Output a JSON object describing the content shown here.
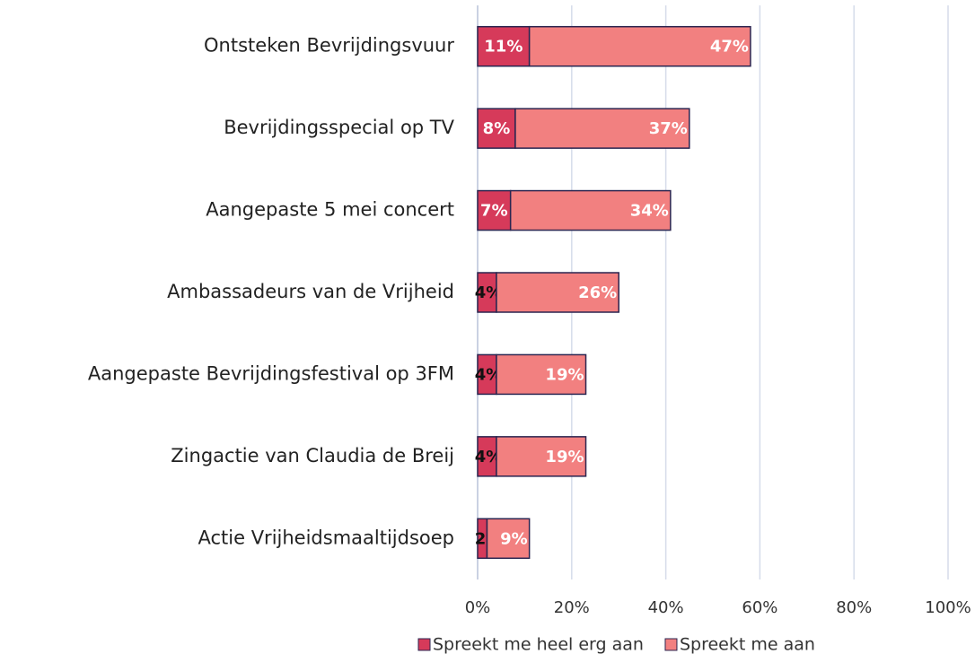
{
  "chart_data": {
    "type": "stacked_barh",
    "categories": [
      "Ontsteken Bevrijdingsvuur",
      "Bevrijdingsspecial op TV",
      "Aangepaste 5 mei concert",
      "Ambassadeurs van de Vrijheid",
      "Aangepaste Bevrijdingsfestival op 3FM",
      "Zingactie van Claudia de Breij",
      "Actie Vrijheidsmaaltijdsoep"
    ],
    "series": [
      {
        "name": "Spreekt me heel erg aan",
        "color": "#d63a5a",
        "values": [
          11,
          8,
          7,
          4,
          4,
          4,
          2
        ],
        "value_labels": [
          "11%",
          "8%",
          "7%",
          "4%",
          "4%",
          "4%",
          "2%"
        ]
      },
      {
        "name": "Spreekt me aan",
        "color": "#f28080",
        "values": [
          47,
          37,
          34,
          26,
          19,
          19,
          9
        ],
        "value_labels": [
          "47%",
          "37%",
          "34%",
          "26%",
          "19%",
          "19%",
          "9%"
        ]
      }
    ],
    "xlim": [
      0,
      100
    ],
    "xticks": [
      {
        "value": 0,
        "label": "0%"
      },
      {
        "value": 20,
        "label": "20%"
      },
      {
        "value": 40,
        "label": "40%"
      },
      {
        "value": 60,
        "label": "60%"
      },
      {
        "value": 80,
        "label": "80%"
      },
      {
        "value": 100,
        "label": "100%"
      }
    ],
    "grid": true,
    "legend": "bottom"
  }
}
